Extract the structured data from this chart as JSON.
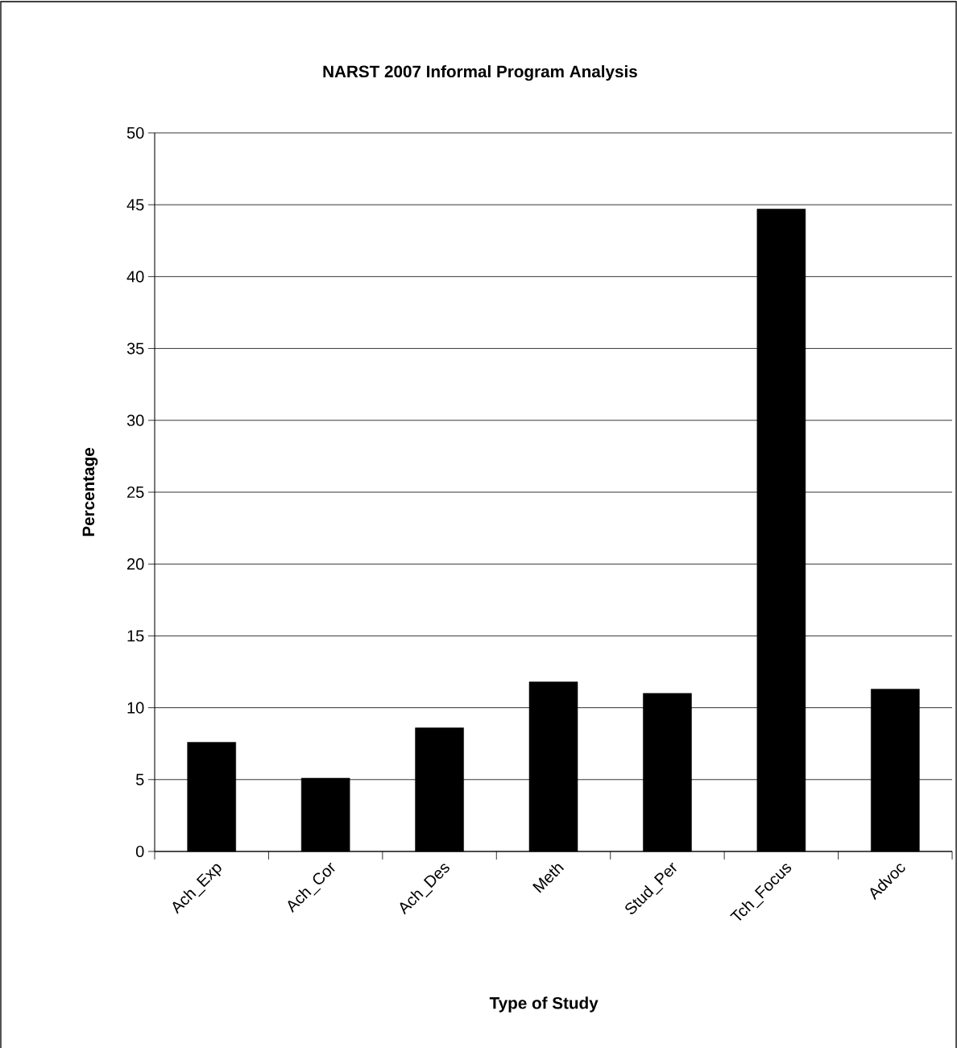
{
  "chart_data": {
    "type": "bar",
    "title": "NARST 2007 Informal Program Analysis",
    "xlabel": "Type of Study",
    "ylabel": "Percentage",
    "categories": [
      "Ach_Exp",
      "Ach_Cor",
      "Ach_Des",
      "Meth",
      "Stud_Per",
      "Tch_Focus",
      "Advoc"
    ],
    "values": [
      7.6,
      5.1,
      8.6,
      11.8,
      11.0,
      44.7,
      11.3
    ],
    "color": "#000000",
    "ylim": [
      0,
      50
    ],
    "yticks": [
      0,
      5,
      10,
      15,
      20,
      25,
      30,
      35,
      40,
      45,
      50
    ],
    "grid": "y"
  }
}
